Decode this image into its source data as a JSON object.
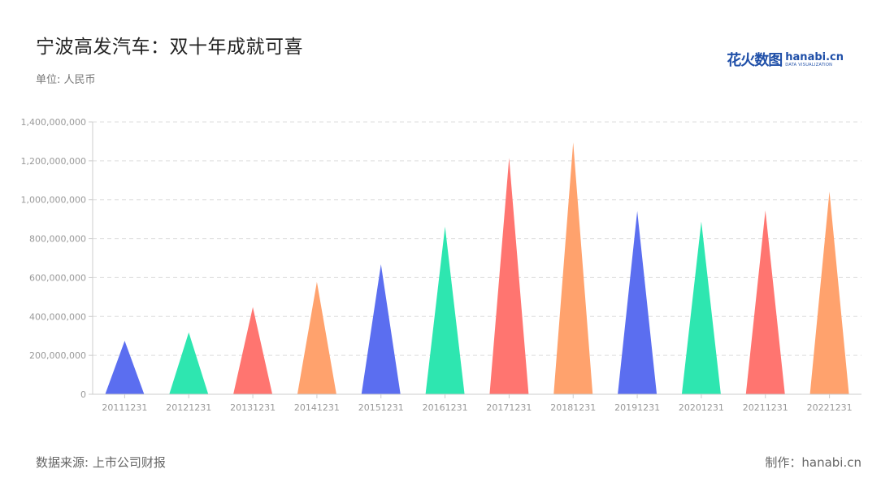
{
  "header": {
    "title": "宁波高发汽车：双十年成就可喜",
    "unit": "单位: 人民币"
  },
  "logo": {
    "cn": "花火数图",
    "en": "hanabi.cn",
    "sub": "DATA VISUALIZATION"
  },
  "footer": {
    "source": "数据来源: 上市公司财报",
    "credit": "制作：hanabi.cn"
  },
  "colors": {
    "palette": [
      "#5b6ef0",
      "#2ee6b0",
      "#ff7570",
      "#ffa26d"
    ],
    "grid": "#dddddd",
    "axis": "#cccccc"
  },
  "chart_data": {
    "type": "bar",
    "mark_shape": "triangle",
    "categories": [
      "20111231",
      "20121231",
      "20131231",
      "20141231",
      "20151231",
      "20161231",
      "20171231",
      "20181231",
      "20191231",
      "20201231",
      "20211231",
      "20221231"
    ],
    "values": [
      275000000,
      318000000,
      448000000,
      578000000,
      668000000,
      862000000,
      1215000000,
      1295000000,
      942000000,
      888000000,
      945000000,
      1042000000
    ],
    "y_ticks": [
      "0",
      "200,000,000",
      "400,000,000",
      "600,000,000",
      "800,000,000",
      "1,000,000,000",
      "1,200,000,000",
      "1,400,000,000"
    ],
    "ylim": [
      0,
      1400000000
    ],
    "grid": true,
    "title": "宁波高发汽车：双十年成就可喜",
    "xlabel": "",
    "ylabel": ""
  }
}
